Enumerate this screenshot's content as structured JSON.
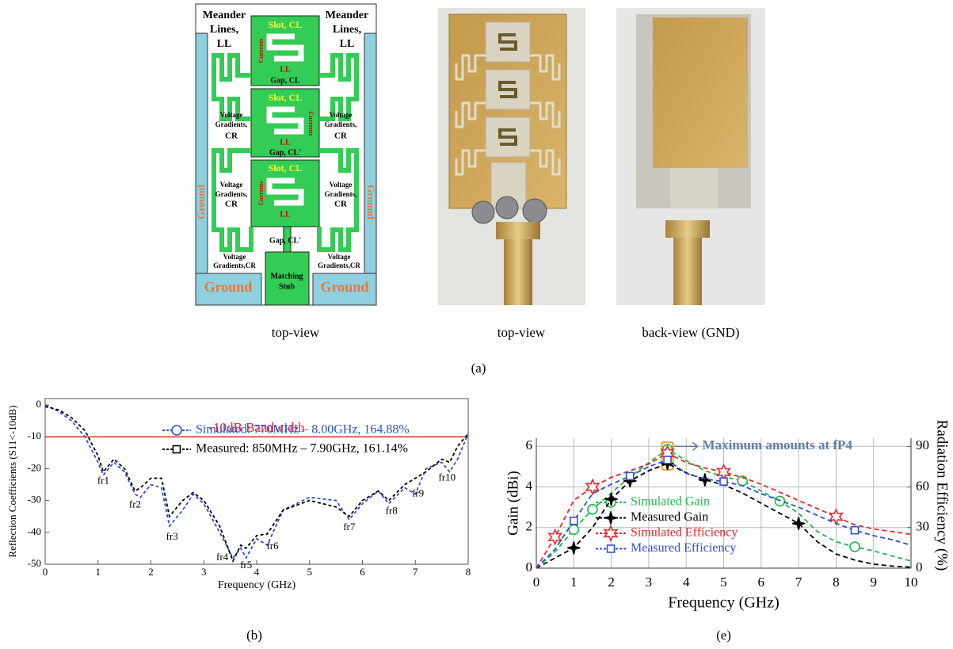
{
  "panel_a": {
    "captions": [
      "top-view",
      "top-view",
      "back-view (GND)"
    ],
    "label": "(a)",
    "diagram": {
      "meander_lines": [
        "Meander",
        "Lines,",
        "LL"
      ],
      "slot": "Slot, CL",
      "currents": "Currents",
      "inductance": "LL",
      "gap": "Gap, CL",
      "gap_prime": "Gap, CL'",
      "voltage_gradients": [
        "Voltage",
        "Gradients,",
        "CR"
      ],
      "voltage_gradients_bottom": [
        "Voltage",
        "Gradients,CR"
      ],
      "ground": "Ground",
      "matching_stub": [
        "Matching",
        "Stub"
      ]
    }
  },
  "chart_data": [
    {
      "type": "line",
      "caption": "(b)",
      "x_label": "Frequency (GHz)",
      "y_label": "Reflection Coefficients (S11<-10dB)",
      "xlim": [
        0,
        8
      ],
      "xticks": [
        0,
        1,
        2,
        3,
        4,
        5,
        6,
        7,
        8
      ],
      "ylim": [
        -50,
        2
      ],
      "yticks": [
        -50,
        -40,
        -30,
        -20,
        -10,
        0
      ],
      "grid": false,
      "legend": "upper center",
      "x": [
        0,
        0.25,
        0.5,
        0.75,
        1.0,
        1.1,
        1.3,
        1.5,
        1.7,
        1.8,
        2.0,
        2.2,
        2.35,
        2.6,
        2.8,
        3.0,
        3.3,
        3.55,
        3.7,
        3.8,
        4.0,
        4.2,
        4.5,
        5.0,
        5.5,
        5.75,
        6.0,
        6.3,
        6.5,
        6.8,
        7.0,
        7.2,
        7.5,
        7.65,
        7.8,
        8.0
      ],
      "series": [
        {
          "name": "Simulated: 770MHz – 8.00GHz, 164.88%",
          "color": "#2f4fd8",
          "marker": "circle",
          "values": [
            0,
            -2,
            -5,
            -10,
            -18,
            -22,
            -18,
            -21,
            -28,
            -29,
            -25,
            -26,
            -38,
            -33,
            -28,
            -31,
            -40,
            -48,
            -45,
            -48,
            -42,
            -44,
            -33,
            -29,
            -30,
            -36,
            -31,
            -27,
            -31,
            -26,
            -28,
            -20,
            -18,
            -21,
            -17,
            -9
          ]
        },
        {
          "name": "Measured: 850MHz – 7.90GHz, 161.14%",
          "color": "#000000",
          "marker": "square",
          "values": [
            -0.5,
            -1.5,
            -4,
            -8,
            -16,
            -21,
            -17,
            -20,
            -27,
            -26,
            -23,
            -23,
            -35,
            -30,
            -27.5,
            -30,
            -38,
            -49,
            -44,
            -45,
            -41,
            -40.5,
            -33,
            -30,
            -32,
            -35,
            -30,
            -27,
            -30,
            -25,
            -23,
            -21,
            -17,
            -18,
            -13,
            -9
          ]
        }
      ],
      "reference_line": {
        "value": -10,
        "label": "-10dB Bandwidth",
        "color": "#e8262a"
      },
      "annotations": [
        "fr1",
        "fr2",
        "fr3",
        "fr4",
        "fr5",
        "fr6",
        "fr7",
        "fr8",
        "fr9",
        "fr10"
      ]
    },
    {
      "type": "line",
      "caption": "(e)",
      "x_label": "Frequency (GHz)",
      "y_label": "Gain (dBi)",
      "y2_label": "Radiation Efficiency (%)",
      "xlim": [
        0,
        10
      ],
      "xticks": [
        0,
        1,
        2,
        3,
        4,
        5,
        6,
        7,
        8,
        9,
        10
      ],
      "ylim": [
        0,
        6.4
      ],
      "yticks": [
        0,
        2,
        4,
        6
      ],
      "y2lim": [
        0,
        96
      ],
      "y2ticks": [
        0,
        30,
        60,
        90
      ],
      "grid": true,
      "legend": "lower left",
      "x": [
        0,
        0.5,
        1,
        1.5,
        2,
        2.5,
        3,
        3.5,
        4,
        4.5,
        5,
        5.5,
        6,
        6.5,
        7,
        7.5,
        8,
        8.5,
        9,
        9.5,
        10
      ],
      "series": [
        {
          "name": "Simulated Gain",
          "color": "#1fb84a",
          "marker": "circle",
          "values": [
            0,
            0.8,
            1.9,
            2.9,
            3.7,
            4.5,
            5.2,
            5.85,
            5.3,
            4.8,
            4.5,
            4.3,
            3.8,
            3.3,
            2.7,
            1.8,
            1.3,
            1.05,
            0.85,
            0.6,
            0.35
          ]
        },
        {
          "name": "Measured Gain",
          "color": "#000000",
          "marker": "star4",
          "values": [
            0,
            0.5,
            1,
            2.0,
            3.4,
            4.3,
            4.8,
            5.15,
            4.7,
            4.35,
            4.1,
            3.7,
            3.2,
            2.7,
            2.2,
            1.3,
            0.7,
            0.4,
            0.2,
            0.1,
            0.05
          ]
        },
        {
          "name": "Simulated Efficiency",
          "color": "#e8262a",
          "marker": "star6",
          "axis": "y2",
          "values": [
            0,
            23,
            50,
            60,
            67,
            72,
            77,
            85,
            78,
            74,
            71,
            67,
            62,
            56,
            50,
            44,
            38,
            32,
            29,
            27,
            25
          ]
        },
        {
          "name": "Measured Efficiency",
          "color": "#2f4fd8",
          "marker": "square",
          "axis": "y2",
          "values": [
            0,
            14,
            35,
            55,
            62,
            68,
            75,
            80,
            70,
            66,
            64,
            61,
            55,
            50,
            45,
            39,
            33,
            28,
            24,
            21,
            17
          ]
        }
      ],
      "annotation": "Maximum amounts at fP4"
    }
  ]
}
